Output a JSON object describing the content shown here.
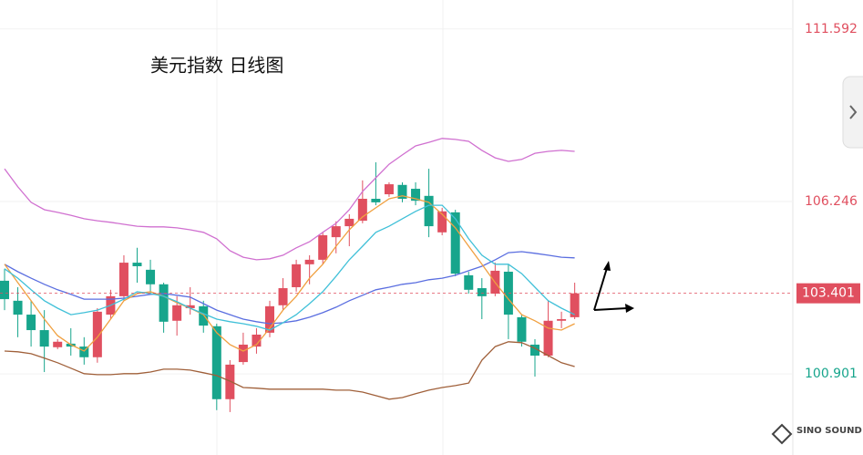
{
  "chart_data": {
    "type": "candlestick",
    "title": "美元指数 日线图",
    "categories": [
      null,
      null,
      null,
      null,
      null,
      null,
      null,
      null,
      null,
      null,
      null,
      null,
      null,
      null,
      null,
      null,
      null,
      null,
      null,
      null,
      null,
      null,
      null,
      null,
      null,
      null,
      null,
      null,
      null,
      null,
      null,
      null,
      null,
      null,
      null,
      null,
      null,
      null,
      null,
      null,
      null,
      null,
      null,
      null
    ],
    "open": [
      103.79,
      103.17,
      102.74,
      102.26,
      101.73,
      101.84,
      101.75,
      101.42,
      102.74,
      103.31,
      104.35,
      104.13,
      103.68,
      102.55,
      102.94,
      103.0,
      102.38,
      100.12,
      101.27,
      101.75,
      102.18,
      103.03,
      103.59,
      104.3,
      104.44,
      105.14,
      105.48,
      105.65,
      106.33,
      106.47,
      106.76,
      106.64,
      106.42,
      105.29,
      105.91,
      103.96,
      103.56,
      103.39,
      104.07,
      102.66,
      101.81,
      101.47,
      102.55,
      102.66
    ],
    "high": [
      104.16,
      103.59,
      103.17,
      102.88,
      101.98,
      102.32,
      102.04,
      102.94,
      103.51,
      104.58,
      104.81,
      104.44,
      103.73,
      103.31,
      103.59,
      103.17,
      102.46,
      101.33,
      102.18,
      102.32,
      103.17,
      103.87,
      104.44,
      104.58,
      105.29,
      105.63,
      105.85,
      106.9,
      107.46,
      106.84,
      106.84,
      106.84,
      107.26,
      106.05,
      105.99,
      104.07,
      103.87,
      104.35,
      104.3,
      102.74,
      101.98,
      103.17,
      102.83,
      103.73
    ],
    "low": [
      102.88,
      102.04,
      101.75,
      100.96,
      101.67,
      101.47,
      101.19,
      101.25,
      102.6,
      103.17,
      103.73,
      103.39,
      102.18,
      102.09,
      102.74,
      102.18,
      99.78,
      99.72,
      101.19,
      101.53,
      102.04,
      102.88,
      103.45,
      103.68,
      104.3,
      104.64,
      104.86,
      105.57,
      106.13,
      106.39,
      106.22,
      106.13,
      105.14,
      105.2,
      103.93,
      103.39,
      102.6,
      103.31,
      101.98,
      101.75,
      100.82,
      101.42,
      102.32,
      102.6
    ],
    "close": [
      103.22,
      102.74,
      102.26,
      101.75,
      101.9,
      101.75,
      101.42,
      102.83,
      103.31,
      104.35,
      104.24,
      103.68,
      102.52,
      103.03,
      103.03,
      102.4,
      100.12,
      101.19,
      101.81,
      102.12,
      103.0,
      103.56,
      104.3,
      104.44,
      105.2,
      105.48,
      105.71,
      106.33,
      106.22,
      106.78,
      106.33,
      106.27,
      105.48,
      105.94,
      104.01,
      103.51,
      103.31,
      104.1,
      102.74,
      101.9,
      101.47,
      102.55,
      102.6,
      103.4
    ],
    "up_color": "#e04f5f",
    "down_color": "#17a58c",
    "series": [
      {
        "color": "#d070d0",
        "values": [
          107.26,
          106.7,
          106.22,
          105.99,
          105.91,
          105.82,
          105.71,
          105.65,
          105.6,
          105.54,
          105.48,
          105.46,
          105.46,
          105.43,
          105.37,
          105.29,
          105.09,
          104.72,
          104.52,
          104.44,
          104.47,
          104.58,
          104.81,
          105.0,
          105.29,
          105.57,
          105.99,
          106.56,
          106.98,
          107.4,
          107.69,
          107.97,
          108.08,
          108.2,
          108.17,
          108.11,
          107.83,
          107.6,
          107.49,
          107.55,
          107.74,
          107.8,
          107.83,
          107.8
        ]
      },
      {
        "color": "#5a6ee0",
        "values": [
          104.3,
          104.07,
          103.87,
          103.68,
          103.51,
          103.37,
          103.22,
          103.22,
          103.22,
          103.25,
          103.31,
          103.37,
          103.39,
          103.34,
          103.28,
          103.08,
          102.88,
          102.74,
          102.6,
          102.52,
          102.46,
          102.49,
          102.55,
          102.66,
          102.8,
          102.97,
          103.17,
          103.34,
          103.51,
          103.59,
          103.68,
          103.73,
          103.82,
          103.87,
          103.96,
          104.1,
          104.24,
          104.44,
          104.66,
          104.69,
          104.64,
          104.58,
          104.52,
          104.5
        ]
      },
      {
        "color": "#a0603a",
        "values": [
          101.61,
          101.59,
          101.53,
          101.39,
          101.25,
          101.08,
          100.91,
          100.88,
          100.88,
          100.91,
          100.91,
          100.96,
          101.05,
          101.05,
          101.02,
          100.94,
          100.85,
          100.68,
          100.48,
          100.46,
          100.43,
          100.43,
          100.43,
          100.43,
          100.43,
          100.4,
          100.4,
          100.34,
          100.23,
          100.12,
          100.17,
          100.29,
          100.4,
          100.48,
          100.54,
          100.62,
          101.33,
          101.75,
          101.9,
          101.87,
          101.7,
          101.47,
          101.25,
          101.13
        ]
      },
      {
        "color": "#f0a040",
        "values": [
          104.3,
          103.73,
          103.17,
          102.6,
          102.09,
          101.81,
          101.61,
          102.04,
          102.6,
          103.17,
          103.39,
          103.45,
          103.31,
          103.11,
          102.94,
          102.74,
          102.18,
          101.81,
          101.61,
          101.81,
          102.32,
          102.88,
          103.31,
          103.87,
          104.3,
          104.86,
          105.37,
          105.77,
          106.05,
          106.33,
          106.42,
          106.33,
          106.22,
          105.85,
          105.43,
          104.86,
          104.3,
          103.73,
          103.22,
          102.74,
          102.55,
          102.32,
          102.26,
          102.46
        ]
      },
      {
        "color": "#40c0d8",
        "values": [
          104.16,
          103.87,
          103.51,
          103.17,
          102.94,
          102.74,
          102.8,
          102.88,
          103.03,
          103.22,
          103.45,
          103.39,
          103.31,
          103.14,
          102.94,
          102.77,
          102.6,
          102.52,
          102.46,
          102.38,
          102.26,
          102.49,
          102.74,
          103.08,
          103.45,
          103.93,
          104.44,
          104.86,
          105.29,
          105.48,
          105.71,
          105.94,
          106.13,
          106.13,
          105.71,
          105.09,
          104.58,
          104.3,
          104.3,
          104.01,
          103.59,
          103.17,
          102.94,
          102.74
        ]
      }
    ],
    "ylim": [
      98.39,
      112.49
    ],
    "yticks": [
      100.901,
      106.246,
      111.592
    ],
    "last_price": 103.401,
    "grid": true
  },
  "logo": "SINO SOUND"
}
